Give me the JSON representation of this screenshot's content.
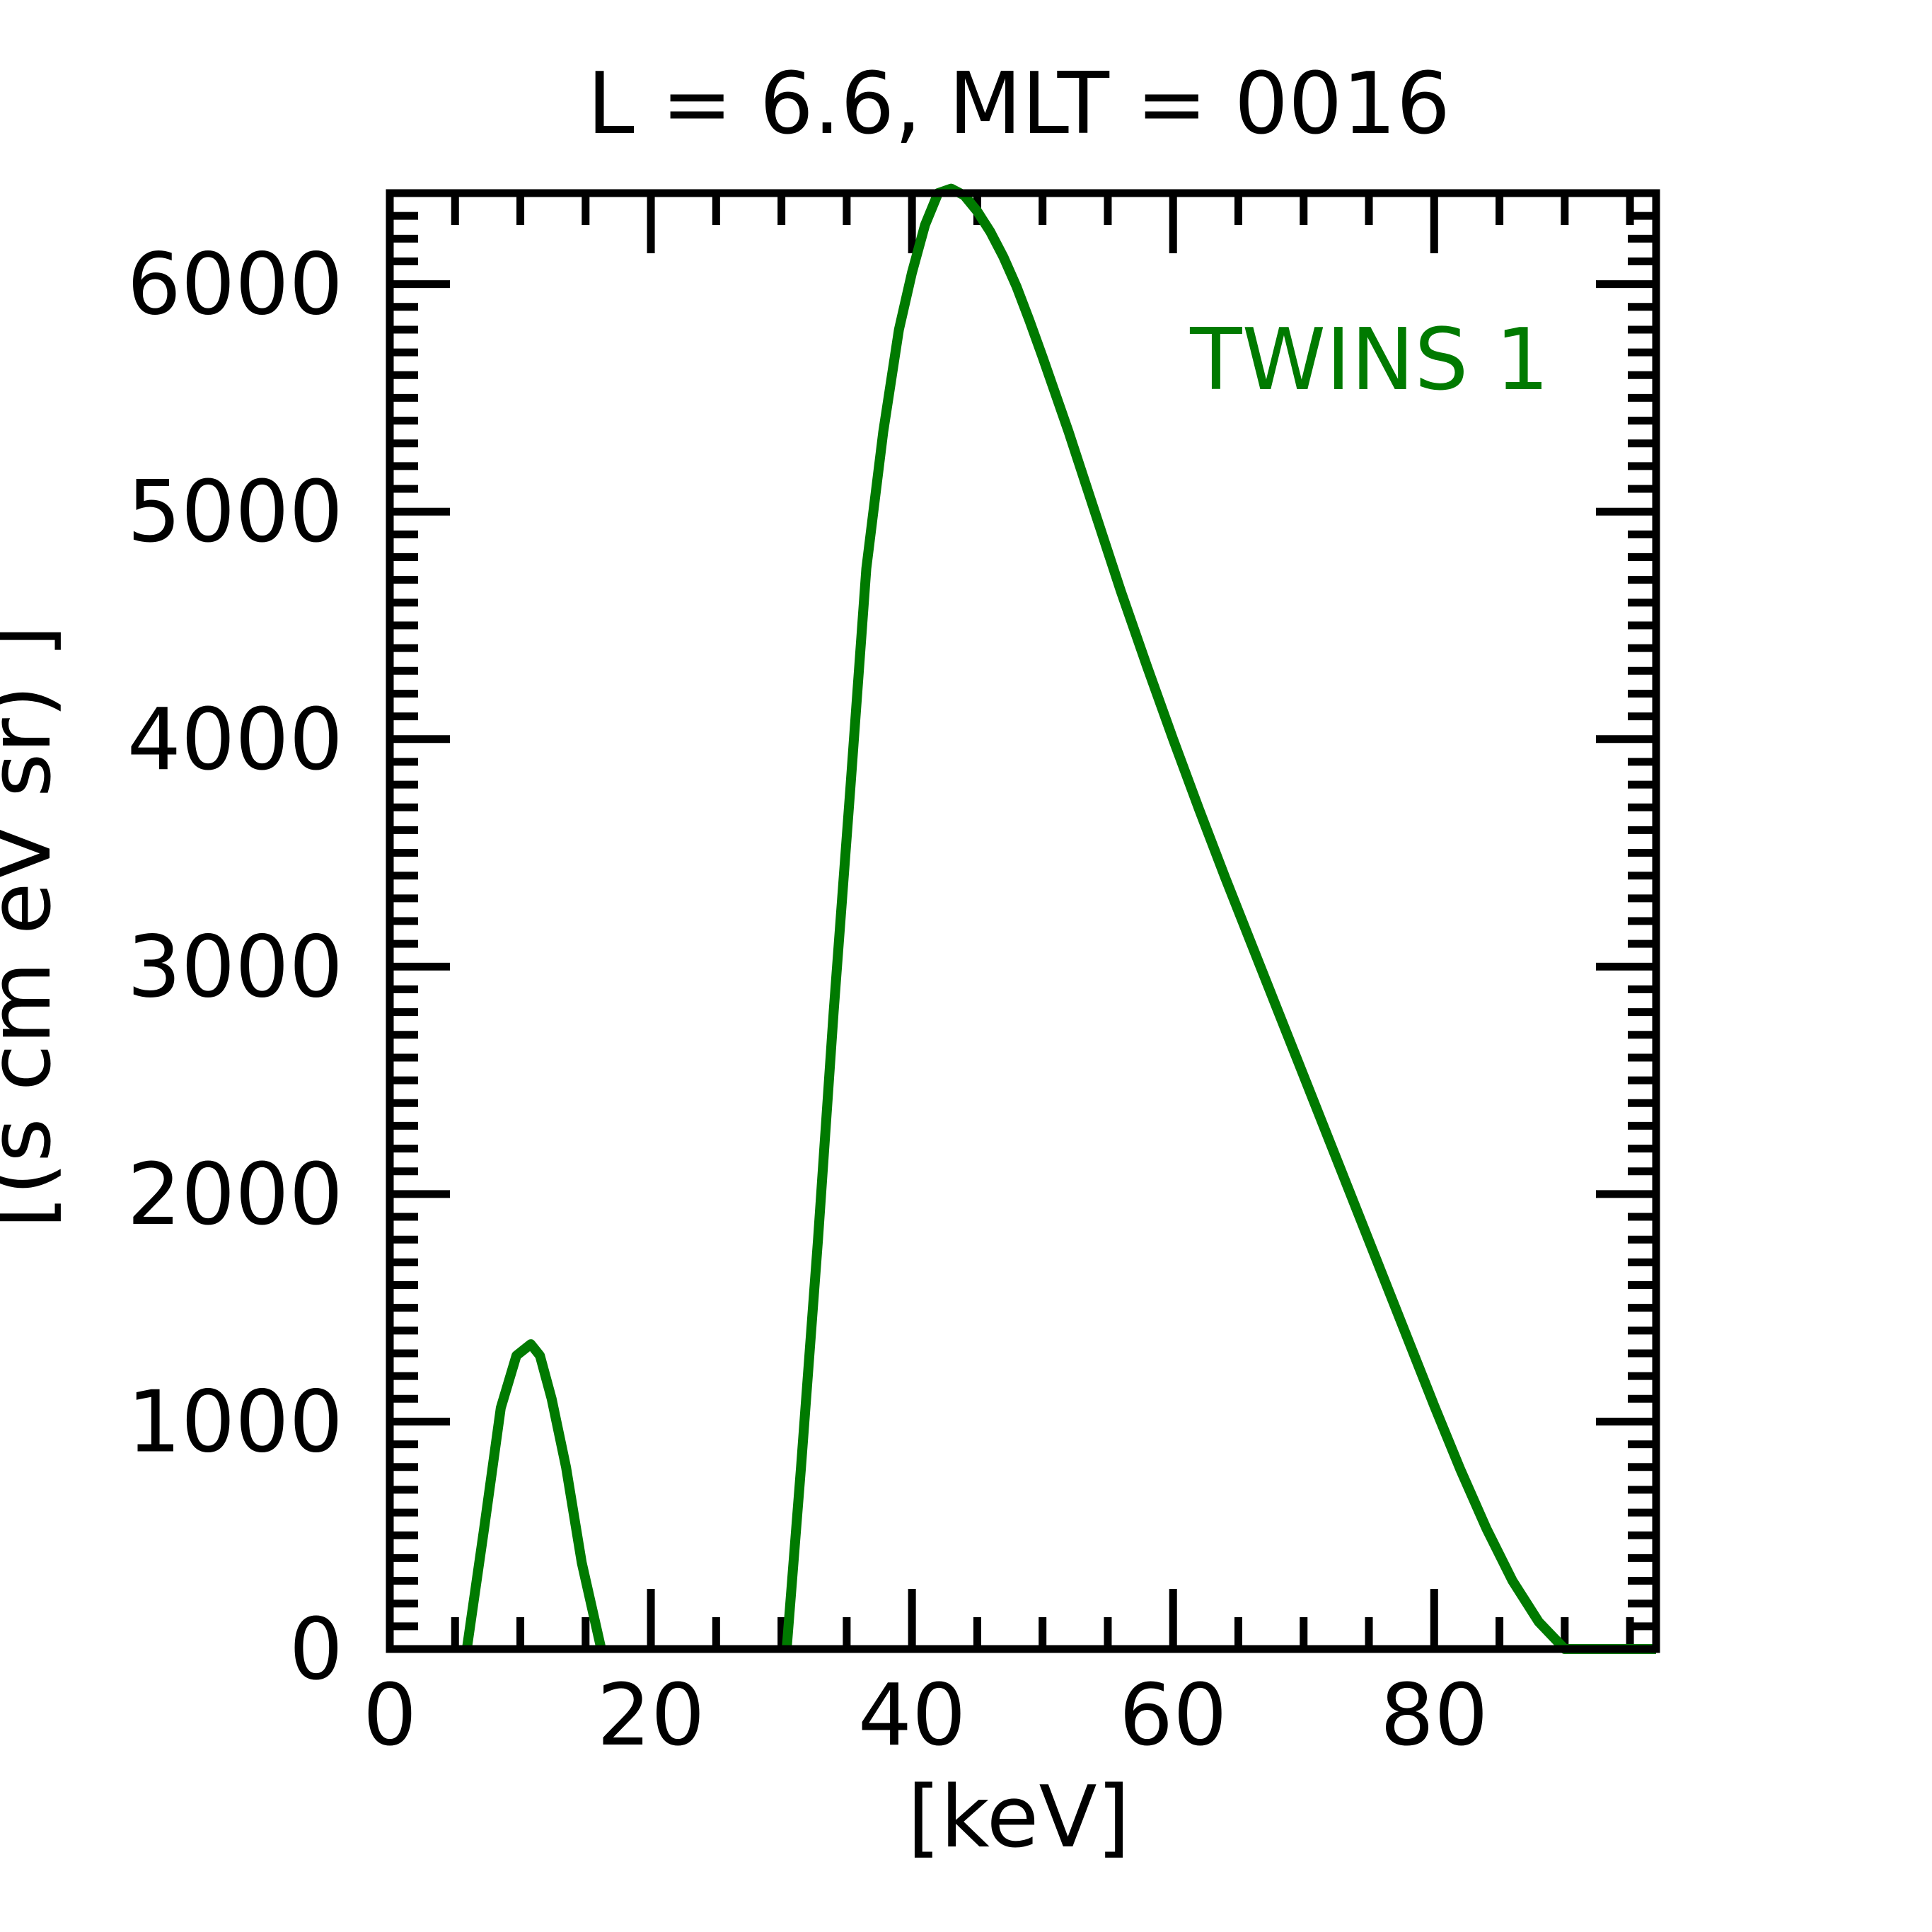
{
  "chart_data": {
    "type": "line",
    "title": "L =  6.6, MLT = 0016",
    "xlabel": "[keV]",
    "ylabel": "[(s cm eV sr)  ]",
    "xlim": [
      0,
      97
    ],
    "ylim": [
      0,
      6400
    ],
    "xticks": [
      0,
      20,
      40,
      60,
      80
    ],
    "xtick_labels": [
      "0",
      "20",
      "40",
      "60",
      "80"
    ],
    "yticks": [
      0,
      1000,
      2000,
      3000,
      4000,
      5000,
      6000
    ],
    "ytick_labels": [
      "0",
      "1000",
      "2000",
      "3000",
      "4000",
      "5000",
      "6000"
    ],
    "x_minor_step": 5,
    "y_minor_step": 100,
    "grid": false,
    "legend_position": "top-right",
    "series": [
      {
        "name": "TWINS 1",
        "color": "#007a00",
        "segments": [
          {
            "x": [
              5.9,
              7.2,
              8.5,
              9.7,
              10.8,
              11.5,
              12.4,
              13.5,
              14.7,
              16.2
            ],
            "y": [
              0,
              520,
              1060,
              1290,
              1340,
              1290,
              1100,
              800,
              380,
              0
            ]
          },
          {
            "x": [
              30.4,
              31.5,
              32.8,
              34.0,
              35.3,
              36.5,
              37.8,
              39.0,
              40.0,
              41.0,
              42.0,
              43.0,
              44.0,
              45.0,
              46.0,
              47.0,
              48.0,
              49.0,
              50.0,
              52.0,
              54.0,
              56.0,
              58.0,
              60.0,
              62.0,
              64.0,
              66.0,
              68.0,
              70.0,
              72.0,
              74.0,
              76.0,
              78.0,
              80.0,
              82.0,
              84.0,
              86.0,
              88.0,
              90.0,
              92.0,
              94.0,
              96.0,
              97.0
            ],
            "y": [
              0,
              800,
              1800,
              2800,
              3800,
              4750,
              5350,
              5800,
              6050,
              6260,
              6400,
              6420,
              6390,
              6320,
              6230,
              6120,
              5990,
              5840,
              5680,
              5350,
              5000,
              4650,
              4320,
              4000,
              3690,
              3390,
              3100,
              2810,
              2520,
              2230,
              1940,
              1650,
              1360,
              1070,
              790,
              530,
              300,
              120,
              0,
              0,
              0,
              0,
              0
            ],
            "y_alt": [],
            "note": ""
          }
        ]
      }
    ],
    "annotations": [
      {
        "text": "TWINS 1",
        "color": "#007a00"
      }
    ]
  }
}
